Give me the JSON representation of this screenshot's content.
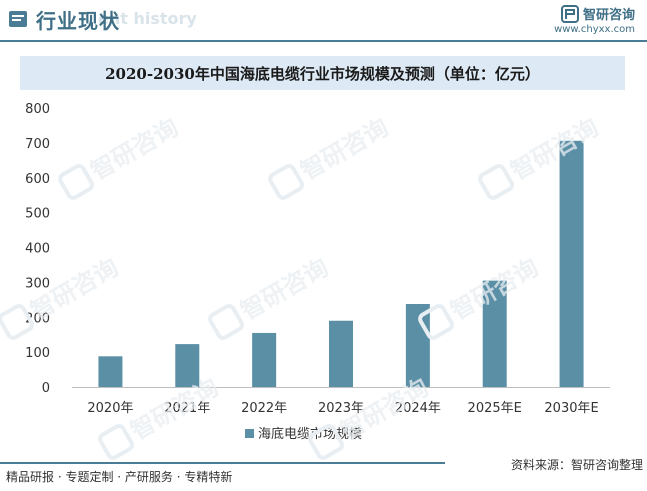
{
  "header": {
    "title": "行业现状",
    "subtitle_ghost": "ent history",
    "brand_name": "智研咨询",
    "brand_url": "www.chyxx.com"
  },
  "watermark": {
    "text": "智研咨询"
  },
  "chart_data": {
    "type": "bar",
    "title": "2020-2030年中国海底电缆行业市场规模及预测（单位：亿元）",
    "categories": [
      "2020年",
      "2021年",
      "2022年",
      "2023年",
      "2024年",
      "2025年E",
      "2030年E"
    ],
    "series": [
      {
        "name": "海底电缆市场规模",
        "values": [
          88,
          123,
          155,
          190,
          238,
          305,
          706
        ],
        "color": "#5b8fa6"
      }
    ],
    "ylim": [
      0,
      800
    ],
    "yticks": [
      0,
      100,
      200,
      300,
      400,
      500,
      600,
      700,
      800
    ],
    "grid": false,
    "legend": "bottom-center"
  },
  "footer": {
    "left": "精品研报 · 专题定制 · 产研服务 · 专精特新",
    "right": "资料来源：智研咨询整理"
  }
}
